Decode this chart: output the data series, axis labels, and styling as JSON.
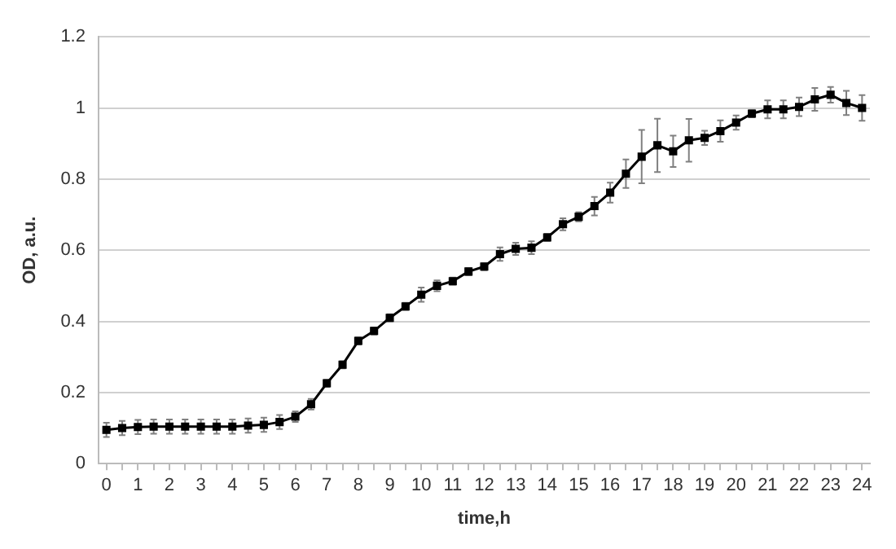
{
  "chart_data": {
    "type": "line",
    "xlabel": "time,h",
    "ylabel": "OD, a.u.",
    "x": [
      0,
      0.5,
      1,
      1.5,
      2,
      2.5,
      3,
      3.5,
      4,
      4.5,
      5,
      5.5,
      6,
      6.5,
      7,
      7.5,
      8,
      8.5,
      9,
      9.5,
      10,
      10.5,
      11,
      11.5,
      12,
      12.5,
      13,
      13.5,
      14,
      14.5,
      15,
      15.5,
      16,
      16.5,
      17,
      17.5,
      18,
      18.5,
      19,
      19.5,
      20,
      20.5,
      21,
      21.5,
      22,
      22.5,
      23,
      23.5,
      24
    ],
    "series": [
      {
        "color": "#000000",
        "values": [
          0.095,
          0.1,
          0.103,
          0.104,
          0.104,
          0.104,
          0.104,
          0.104,
          0.104,
          0.107,
          0.109,
          0.117,
          0.132,
          0.167,
          0.226,
          0.278,
          0.345,
          0.373,
          0.41,
          0.442,
          0.475,
          0.5,
          0.513,
          0.54,
          0.554,
          0.589,
          0.604,
          0.607,
          0.636,
          0.673,
          0.694,
          0.724,
          0.762,
          0.815,
          0.863,
          0.895,
          0.878,
          0.909,
          0.916,
          0.935,
          0.959,
          0.984,
          0.996,
          0.996,
          1.003,
          1.024,
          1.037,
          1.014,
          1.0
        ],
        "errors": [
          0.02,
          0.02,
          0.02,
          0.02,
          0.02,
          0.02,
          0.02,
          0.02,
          0.02,
          0.02,
          0.02,
          0.02,
          0.015,
          0.015,
          0.01,
          0.01,
          0.01,
          0.01,
          0.01,
          0.01,
          0.02,
          0.015,
          0.01,
          0.01,
          0.01,
          0.019,
          0.017,
          0.018,
          0.01,
          0.017,
          0.013,
          0.026,
          0.028,
          0.04,
          0.075,
          0.075,
          0.044,
          0.06,
          0.02,
          0.03,
          0.02,
          0.01,
          0.025,
          0.025,
          0.026,
          0.032,
          0.022,
          0.034,
          0.036
        ]
      }
    ],
    "xlim": [
      -0.25,
      24.25
    ],
    "xticks": [
      0,
      {
        "value": 0.5,
        "label": null
      },
      1,
      {
        "value": 1.5,
        "label": null
      },
      2,
      {
        "value": 2.5,
        "label": null
      },
      3,
      {
        "value": 3.5,
        "label": null
      },
      4,
      {
        "value": 4.5,
        "label": null
      },
      5,
      {
        "value": 5.5,
        "label": null
      },
      6,
      {
        "value": 6.5,
        "label": null
      },
      7,
      {
        "value": 7.5,
        "label": null
      },
      8,
      {
        "value": 8.5,
        "label": null
      },
      9,
      {
        "value": 9.5,
        "label": null
      },
      10,
      {
        "value": 10.5,
        "label": null
      },
      11,
      {
        "value": 11.5,
        "label": null
      },
      12,
      {
        "value": 12.5,
        "label": null
      },
      13,
      {
        "value": 13.5,
        "label": null
      },
      14,
      {
        "value": 14.5,
        "label": null
      },
      15,
      {
        "value": 15.5,
        "label": null
      },
      16,
      {
        "value": 16.5,
        "label": null
      },
      17,
      {
        "value": 17.5,
        "label": null
      },
      18,
      {
        "value": 18.5,
        "label": null
      },
      19,
      {
        "value": 19.5,
        "label": null
      },
      20,
      {
        "value": 20.5,
        "label": null
      },
      21,
      {
        "value": 21.5,
        "label": null
      },
      22,
      {
        "value": 22.5,
        "label": null
      },
      23,
      {
        "value": 23.5,
        "label": null
      },
      24
    ],
    "ylim": [
      0,
      1.2
    ],
    "yticks": [
      0,
      0.2,
      0.4,
      0.6,
      0.8,
      1,
      1.2
    ],
    "grid": "y",
    "legend": false,
    "marker": "square",
    "line_style": "solid"
  }
}
